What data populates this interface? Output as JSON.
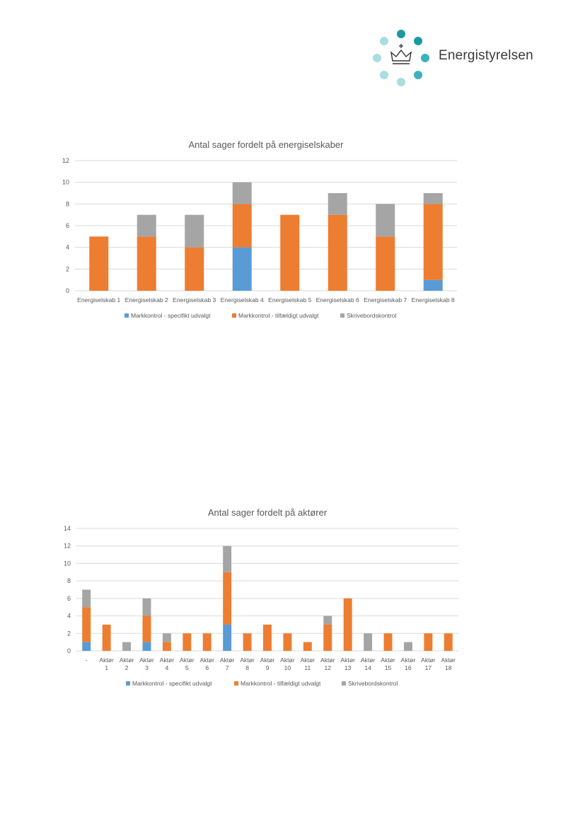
{
  "brand": {
    "name": "Energistyrelsen",
    "logo_icon": "crown-dots-logo",
    "dot_colors": [
      "#1a9aa0",
      "#1a9aa0",
      "#3cb3bb",
      "#3cb3bb",
      "#a8dde2",
      "#a8dde2",
      "#a8dde2",
      "#a8dde2"
    ]
  },
  "chart_data": [
    {
      "type": "bar",
      "stacked": true,
      "title": "Antal sager fordelt på energiselskaber",
      "categories": [
        "Energiselskab 1",
        "Energiselskab 2",
        "Energiselskab 3",
        "Energiselskab 4",
        "Energiselskab 5",
        "Energiselskab 6",
        "Energiselskab 7",
        "Energiselskab 8"
      ],
      "series": [
        {
          "name": "Markkontrol - specifikt udvalgt",
          "color": "#5b9bd5",
          "values": [
            0,
            0,
            0,
            4,
            0,
            0,
            0,
            1
          ]
        },
        {
          "name": "Markkontrol - tilfældigt udvalgt",
          "color": "#ed7d31",
          "values": [
            5,
            5,
            4,
            4,
            7,
            7,
            5,
            7
          ]
        },
        {
          "name": "Skrivebordskontrol",
          "color": "#a5a5a5",
          "values": [
            0,
            2,
            3,
            2,
            0,
            2,
            3,
            1
          ]
        }
      ],
      "ylim": [
        0,
        12
      ],
      "yticks": [
        0,
        2,
        4,
        6,
        8,
        10,
        12
      ],
      "xlabel": "",
      "ylabel": "",
      "grid": true,
      "legend": "bottom"
    },
    {
      "type": "bar",
      "stacked": true,
      "title": "Antal sager fordelt på aktører",
      "categories": [
        [
          "-"
        ],
        [
          "Aktør",
          "1"
        ],
        [
          "Aktør",
          "2"
        ],
        [
          "Aktør",
          "3"
        ],
        [
          "Aktør",
          "4"
        ],
        [
          "Aktør",
          "5"
        ],
        [
          "Aktør",
          "6"
        ],
        [
          "Aktør",
          "7"
        ],
        [
          "Aktør",
          "8"
        ],
        [
          "Aktør",
          "9"
        ],
        [
          "Aktør",
          "10"
        ],
        [
          "Aktør",
          "11"
        ],
        [
          "Aktør",
          "12"
        ],
        [
          "Aktør",
          "13"
        ],
        [
          "Aktør",
          "14"
        ],
        [
          "Aktør",
          "15"
        ],
        [
          "Aktør",
          "16"
        ],
        [
          "Aktør",
          "17"
        ],
        [
          "Aktør",
          "18"
        ]
      ],
      "series": [
        {
          "name": "Markkontrol - specifikt udvalgt",
          "color": "#5b9bd5",
          "values": [
            1,
            0,
            0,
            1,
            0,
            0,
            0,
            3,
            0,
            0,
            0,
            0,
            0,
            0,
            0,
            0,
            0,
            0,
            0
          ]
        },
        {
          "name": "Markkontrol - tilfældigt udvalgt",
          "color": "#ed7d31",
          "values": [
            4,
            3,
            0,
            3,
            1,
            2,
            2,
            6,
            2,
            3,
            2,
            1,
            3,
            6,
            0,
            2,
            0,
            2,
            2
          ]
        },
        {
          "name": "Skrivebordskontrol",
          "color": "#a5a5a5",
          "values": [
            2,
            0,
            1,
            2,
            1,
            0,
            0,
            3,
            0,
            0,
            0,
            0,
            1,
            0,
            2,
            0,
            1,
            0,
            0
          ]
        }
      ],
      "ylim": [
        0,
        14
      ],
      "yticks": [
        0,
        2,
        4,
        6,
        8,
        10,
        12,
        14
      ],
      "xlabel": "",
      "ylabel": "",
      "grid": true,
      "legend": "bottom"
    }
  ]
}
